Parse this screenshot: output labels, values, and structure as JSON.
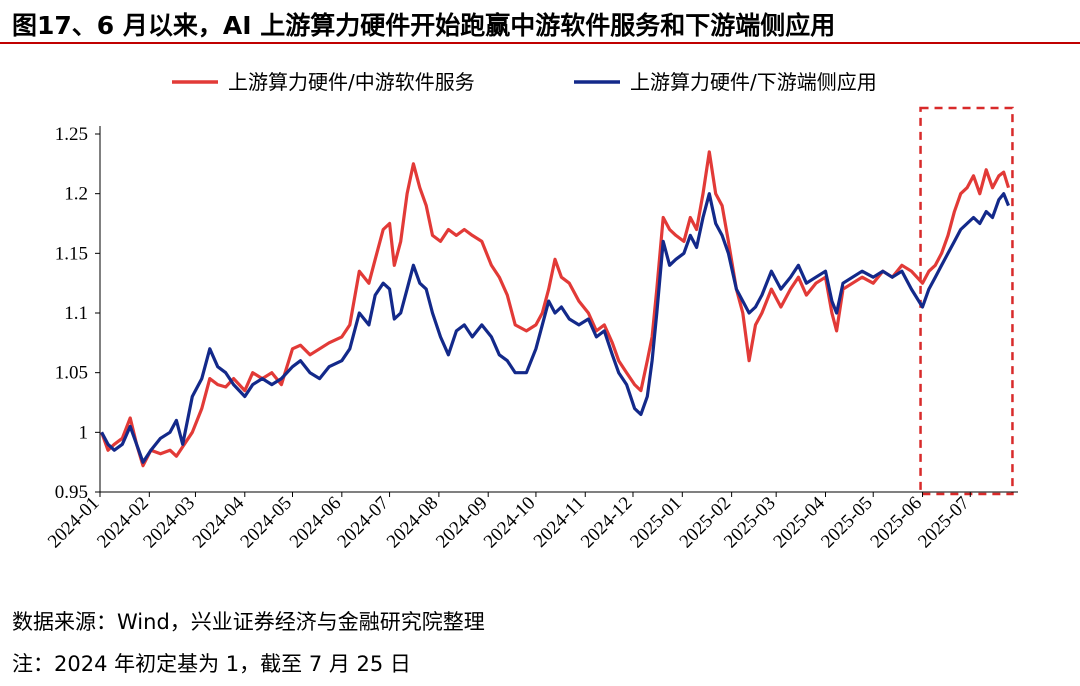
{
  "title": "图17、6 月以来，AI 上游算力硬件开始跑赢中游软件服务和下游端侧应用",
  "source": "数据来源：Wind，兴业证券经济与金融研究院整理",
  "note": "注：2024 年初定基为 1，截至 7 月 25 日",
  "colors": {
    "red": "#e23a37",
    "blue": "#13298a",
    "highlight": "#d82a2a"
  },
  "chart_data": {
    "type": "line",
    "xlabel": "",
    "ylabel": "",
    "ylim": [
      0.95,
      1.25
    ],
    "yticks": [
      "0.95",
      "1",
      "1.05",
      "1.1",
      "1.15",
      "1.2",
      "1.25"
    ],
    "x": [
      "2024-01",
      "2024-02",
      "2024-03",
      "2024-04",
      "2024-05",
      "2024-06",
      "2024-07",
      "2024-08",
      "2024-09",
      "2024-10",
      "2024-11",
      "2024-12",
      "2025-01",
      "2025-02",
      "2025-03",
      "2025-04",
      "2025-05",
      "2025-06",
      "2025-07"
    ],
    "legend_position": "top",
    "grid": false,
    "highlight_box": {
      "from": "2025-06",
      "to": "2025-07-25",
      "ylim": [
        0.95,
        1.25
      ]
    },
    "series": [
      {
        "name": "上游算力硬件/中游软件服务",
        "color": "#e23a37",
        "points": [
          [
            "2024-01-02",
            1.0
          ],
          [
            "2024-01-06",
            0.985
          ],
          [
            "2024-01-10",
            0.99
          ],
          [
            "2024-01-15",
            0.995
          ],
          [
            "2024-01-20",
            1.012
          ],
          [
            "2024-01-24",
            0.99
          ],
          [
            "2024-01-28",
            0.972
          ],
          [
            "2024-02-02",
            0.985
          ],
          [
            "2024-02-08",
            0.982
          ],
          [
            "2024-02-14",
            0.985
          ],
          [
            "2024-02-18",
            0.98
          ],
          [
            "2024-02-22",
            0.988
          ],
          [
            "2024-02-28",
            1.0
          ],
          [
            "2024-03-05",
            1.02
          ],
          [
            "2024-03-10",
            1.045
          ],
          [
            "2024-03-15",
            1.04
          ],
          [
            "2024-03-20",
            1.038
          ],
          [
            "2024-03-25",
            1.045
          ],
          [
            "2024-04-01",
            1.035
          ],
          [
            "2024-04-06",
            1.05
          ],
          [
            "2024-04-12",
            1.045
          ],
          [
            "2024-04-18",
            1.05
          ],
          [
            "2024-04-24",
            1.04
          ],
          [
            "2024-05-01",
            1.07
          ],
          [
            "2024-05-06",
            1.073
          ],
          [
            "2024-05-12",
            1.065
          ],
          [
            "2024-05-18",
            1.07
          ],
          [
            "2024-05-24",
            1.075
          ],
          [
            "2024-06-01",
            1.08
          ],
          [
            "2024-06-06",
            1.09
          ],
          [
            "2024-06-12",
            1.135
          ],
          [
            "2024-06-18",
            1.125
          ],
          [
            "2024-06-22",
            1.145
          ],
          [
            "2024-06-27",
            1.17
          ],
          [
            "2024-07-01",
            1.175
          ],
          [
            "2024-07-04",
            1.14
          ],
          [
            "2024-07-08",
            1.16
          ],
          [
            "2024-07-12",
            1.2
          ],
          [
            "2024-07-16",
            1.225
          ],
          [
            "2024-07-20",
            1.205
          ],
          [
            "2024-07-24",
            1.19
          ],
          [
            "2024-07-28",
            1.165
          ],
          [
            "2024-08-02",
            1.16
          ],
          [
            "2024-08-07",
            1.17
          ],
          [
            "2024-08-12",
            1.165
          ],
          [
            "2024-08-17",
            1.17
          ],
          [
            "2024-08-22",
            1.165
          ],
          [
            "2024-08-28",
            1.16
          ],
          [
            "2024-09-03",
            1.14
          ],
          [
            "2024-09-08",
            1.13
          ],
          [
            "2024-09-13",
            1.115
          ],
          [
            "2024-09-18",
            1.09
          ],
          [
            "2024-09-25",
            1.085
          ],
          [
            "2024-10-01",
            1.09
          ],
          [
            "2024-10-05",
            1.1
          ],
          [
            "2024-10-09",
            1.12
          ],
          [
            "2024-10-13",
            1.145
          ],
          [
            "2024-10-17",
            1.13
          ],
          [
            "2024-10-22",
            1.125
          ],
          [
            "2024-10-28",
            1.11
          ],
          [
            "2024-11-03",
            1.1
          ],
          [
            "2024-11-08",
            1.085
          ],
          [
            "2024-11-13",
            1.09
          ],
          [
            "2024-11-18",
            1.075
          ],
          [
            "2024-11-22",
            1.06
          ],
          [
            "2024-11-27",
            1.05
          ],
          [
            "2024-12-02",
            1.04
          ],
          [
            "2024-12-06",
            1.035
          ],
          [
            "2024-12-10",
            1.06
          ],
          [
            "2024-12-13",
            1.08
          ],
          [
            "2024-12-16",
            1.12
          ],
          [
            "2024-12-20",
            1.18
          ],
          [
            "2024-12-24",
            1.17
          ],
          [
            "2024-12-28",
            1.165
          ],
          [
            "2025-01-02",
            1.16
          ],
          [
            "2025-01-06",
            1.18
          ],
          [
            "2025-01-10",
            1.17
          ],
          [
            "2025-01-14",
            1.2
          ],
          [
            "2025-01-18",
            1.235
          ],
          [
            "2025-01-22",
            1.2
          ],
          [
            "2025-01-26",
            1.19
          ],
          [
            "2025-01-30",
            1.16
          ],
          [
            "2025-02-04",
            1.12
          ],
          [
            "2025-02-08",
            1.1
          ],
          [
            "2025-02-12",
            1.06
          ],
          [
            "2025-02-16",
            1.09
          ],
          [
            "2025-02-20",
            1.1
          ],
          [
            "2025-02-26",
            1.12
          ],
          [
            "2025-03-04",
            1.105
          ],
          [
            "2025-03-10",
            1.12
          ],
          [
            "2025-03-15",
            1.13
          ],
          [
            "2025-03-20",
            1.115
          ],
          [
            "2025-03-26",
            1.125
          ],
          [
            "2025-04-01",
            1.13
          ],
          [
            "2025-04-05",
            1.1
          ],
          [
            "2025-04-08",
            1.085
          ],
          [
            "2025-04-12",
            1.12
          ],
          [
            "2025-04-18",
            1.125
          ],
          [
            "2025-04-24",
            1.13
          ],
          [
            "2025-05-01",
            1.125
          ],
          [
            "2025-05-07",
            1.135
          ],
          [
            "2025-05-13",
            1.13
          ],
          [
            "2025-05-19",
            1.14
          ],
          [
            "2025-05-25",
            1.135
          ],
          [
            "2025-06-01",
            1.125
          ],
          [
            "2025-06-05",
            1.135
          ],
          [
            "2025-06-09",
            1.14
          ],
          [
            "2025-06-13",
            1.15
          ],
          [
            "2025-06-17",
            1.165
          ],
          [
            "2025-06-21",
            1.185
          ],
          [
            "2025-06-25",
            1.2
          ],
          [
            "2025-06-29",
            1.205
          ],
          [
            "2025-07-03",
            1.215
          ],
          [
            "2025-07-07",
            1.2
          ],
          [
            "2025-07-11",
            1.22
          ],
          [
            "2025-07-15",
            1.205
          ],
          [
            "2025-07-19",
            1.215
          ],
          [
            "2025-07-22",
            1.218
          ],
          [
            "2025-07-25",
            1.205
          ]
        ]
      },
      {
        "name": "上游算力硬件/下游端侧应用",
        "color": "#13298a",
        "points": [
          [
            "2024-01-02",
            1.0
          ],
          [
            "2024-01-06",
            0.99
          ],
          [
            "2024-01-10",
            0.985
          ],
          [
            "2024-01-15",
            0.99
          ],
          [
            "2024-01-20",
            1.005
          ],
          [
            "2024-01-24",
            0.99
          ],
          [
            "2024-01-28",
            0.975
          ],
          [
            "2024-02-02",
            0.985
          ],
          [
            "2024-02-08",
            0.995
          ],
          [
            "2024-02-14",
            1.0
          ],
          [
            "2024-02-18",
            1.01
          ],
          [
            "2024-02-22",
            0.99
          ],
          [
            "2024-02-28",
            1.03
          ],
          [
            "2024-03-05",
            1.045
          ],
          [
            "2024-03-10",
            1.07
          ],
          [
            "2024-03-15",
            1.055
          ],
          [
            "2024-03-20",
            1.05
          ],
          [
            "2024-03-25",
            1.04
          ],
          [
            "2024-04-01",
            1.03
          ],
          [
            "2024-04-06",
            1.04
          ],
          [
            "2024-04-12",
            1.045
          ],
          [
            "2024-04-18",
            1.04
          ],
          [
            "2024-04-24",
            1.045
          ],
          [
            "2024-05-01",
            1.055
          ],
          [
            "2024-05-06",
            1.06
          ],
          [
            "2024-05-12",
            1.05
          ],
          [
            "2024-05-18",
            1.045
          ],
          [
            "2024-05-24",
            1.055
          ],
          [
            "2024-06-01",
            1.06
          ],
          [
            "2024-06-06",
            1.07
          ],
          [
            "2024-06-12",
            1.1
          ],
          [
            "2024-06-18",
            1.09
          ],
          [
            "2024-06-22",
            1.115
          ],
          [
            "2024-06-27",
            1.125
          ],
          [
            "2024-07-01",
            1.12
          ],
          [
            "2024-07-04",
            1.095
          ],
          [
            "2024-07-08",
            1.1
          ],
          [
            "2024-07-12",
            1.12
          ],
          [
            "2024-07-16",
            1.14
          ],
          [
            "2024-07-20",
            1.125
          ],
          [
            "2024-07-24",
            1.12
          ],
          [
            "2024-07-28",
            1.1
          ],
          [
            "2024-08-02",
            1.08
          ],
          [
            "2024-08-07",
            1.065
          ],
          [
            "2024-08-12",
            1.085
          ],
          [
            "2024-08-17",
            1.09
          ],
          [
            "2024-08-22",
            1.08
          ],
          [
            "2024-08-28",
            1.09
          ],
          [
            "2024-09-03",
            1.08
          ],
          [
            "2024-09-08",
            1.065
          ],
          [
            "2024-09-13",
            1.06
          ],
          [
            "2024-09-18",
            1.05
          ],
          [
            "2024-09-25",
            1.05
          ],
          [
            "2024-10-01",
            1.07
          ],
          [
            "2024-10-05",
            1.09
          ],
          [
            "2024-10-09",
            1.11
          ],
          [
            "2024-10-13",
            1.1
          ],
          [
            "2024-10-17",
            1.105
          ],
          [
            "2024-10-22",
            1.095
          ],
          [
            "2024-10-28",
            1.09
          ],
          [
            "2024-11-03",
            1.095
          ],
          [
            "2024-11-08",
            1.08
          ],
          [
            "2024-11-13",
            1.085
          ],
          [
            "2024-11-18",
            1.065
          ],
          [
            "2024-11-22",
            1.05
          ],
          [
            "2024-11-27",
            1.04
          ],
          [
            "2024-12-02",
            1.02
          ],
          [
            "2024-12-06",
            1.015
          ],
          [
            "2024-12-10",
            1.03
          ],
          [
            "2024-12-13",
            1.06
          ],
          [
            "2024-12-16",
            1.1
          ],
          [
            "2024-12-20",
            1.16
          ],
          [
            "2024-12-24",
            1.14
          ],
          [
            "2024-12-28",
            1.145
          ],
          [
            "2025-01-02",
            1.15
          ],
          [
            "2025-01-06",
            1.165
          ],
          [
            "2025-01-10",
            1.155
          ],
          [
            "2025-01-14",
            1.18
          ],
          [
            "2025-01-18",
            1.2
          ],
          [
            "2025-01-22",
            1.175
          ],
          [
            "2025-01-26",
            1.165
          ],
          [
            "2025-01-30",
            1.15
          ],
          [
            "2025-02-04",
            1.12
          ],
          [
            "2025-02-08",
            1.11
          ],
          [
            "2025-02-12",
            1.1
          ],
          [
            "2025-02-16",
            1.105
          ],
          [
            "2025-02-20",
            1.115
          ],
          [
            "2025-02-26",
            1.135
          ],
          [
            "2025-03-04",
            1.12
          ],
          [
            "2025-03-10",
            1.13
          ],
          [
            "2025-03-15",
            1.14
          ],
          [
            "2025-03-20",
            1.125
          ],
          [
            "2025-03-26",
            1.13
          ],
          [
            "2025-04-01",
            1.135
          ],
          [
            "2025-04-05",
            1.11
          ],
          [
            "2025-04-08",
            1.1
          ],
          [
            "2025-04-12",
            1.125
          ],
          [
            "2025-04-18",
            1.13
          ],
          [
            "2025-04-24",
            1.135
          ],
          [
            "2025-05-01",
            1.13
          ],
          [
            "2025-05-07",
            1.135
          ],
          [
            "2025-05-13",
            1.13
          ],
          [
            "2025-05-19",
            1.135
          ],
          [
            "2025-05-25",
            1.12
          ],
          [
            "2025-06-01",
            1.105
          ],
          [
            "2025-06-05",
            1.12
          ],
          [
            "2025-06-09",
            1.13
          ],
          [
            "2025-06-13",
            1.14
          ],
          [
            "2025-06-17",
            1.15
          ],
          [
            "2025-06-21",
            1.16
          ],
          [
            "2025-06-25",
            1.17
          ],
          [
            "2025-06-29",
            1.175
          ],
          [
            "2025-07-03",
            1.18
          ],
          [
            "2025-07-07",
            1.175
          ],
          [
            "2025-07-11",
            1.185
          ],
          [
            "2025-07-15",
            1.18
          ],
          [
            "2025-07-19",
            1.195
          ],
          [
            "2025-07-22",
            1.2
          ],
          [
            "2025-07-25",
            1.19
          ]
        ]
      }
    ]
  }
}
